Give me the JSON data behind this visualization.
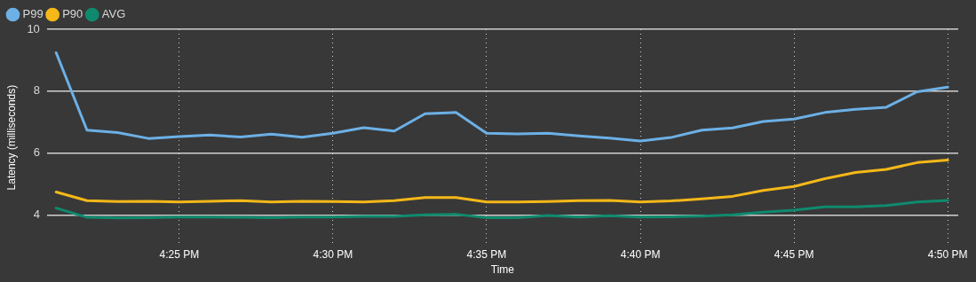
{
  "chart_data": {
    "type": "line",
    "xlabel": "Time",
    "ylabel": "Latency (milliseconds)",
    "x": [
      16.35,
      16.3667,
      16.3833,
      16.4,
      16.4167,
      16.4333,
      16.45,
      16.4667,
      16.4833,
      16.5,
      16.5167,
      16.5333,
      16.55,
      16.5667,
      16.5833,
      16.6,
      16.6167,
      16.6333,
      16.65,
      16.6667,
      16.6833,
      16.7,
      16.7167,
      16.7333,
      16.75,
      16.7667,
      16.7833,
      16.8,
      16.8167,
      16.8333
    ],
    "series": [
      {
        "name": "P99",
        "color": "#6cb0e6",
        "values": [
          9.24,
          6.74,
          6.66,
          6.47,
          6.53,
          6.58,
          6.52,
          6.61,
          6.51,
          6.64,
          6.82,
          6.71,
          7.27,
          7.31,
          6.64,
          6.62,
          6.64,
          6.55,
          6.48,
          6.39,
          6.5,
          6.74,
          6.81,
          7.02,
          7.1,
          7.31,
          7.41,
          7.48,
          7.98,
          8.13
        ]
      },
      {
        "name": "P90",
        "color": "#f5b819",
        "values": [
          4.74,
          4.46,
          4.43,
          4.44,
          4.42,
          4.44,
          4.46,
          4.42,
          4.44,
          4.43,
          4.42,
          4.46,
          4.56,
          4.56,
          4.42,
          4.42,
          4.43,
          4.46,
          4.47,
          4.42,
          4.45,
          4.52,
          4.6,
          4.79,
          4.92,
          5.17,
          5.37,
          5.47,
          5.69,
          5.77
        ]
      },
      {
        "name": "AVG",
        "color": "#0f8a6e",
        "values": [
          4.22,
          3.92,
          3.9,
          3.91,
          3.93,
          3.93,
          3.92,
          3.91,
          3.93,
          3.93,
          3.95,
          3.95,
          4.0,
          4.02,
          3.91,
          3.91,
          3.98,
          3.93,
          3.97,
          3.93,
          3.94,
          3.96,
          4.0,
          4.09,
          4.15,
          4.26,
          4.26,
          4.3,
          4.42,
          4.47
        ]
      }
    ],
    "xlim": [
      16.345,
      16.839
    ],
    "xticks": [
      {
        "value": 16.4167,
        "label": "4:25 PM"
      },
      {
        "value": 16.5,
        "label": "4:30 PM"
      },
      {
        "value": 16.5833,
        "label": "4:35 PM"
      },
      {
        "value": 16.6667,
        "label": "4:40 PM"
      },
      {
        "value": 16.75,
        "label": "4:45 PM"
      },
      {
        "value": 16.8333,
        "label": "4:50 PM"
      }
    ],
    "ylim": [
      3,
      10
    ],
    "yticks": [
      4,
      6,
      8,
      10
    ],
    "grid": true,
    "legend": "top left",
    "marker": "none",
    "line_style": "solid"
  }
}
